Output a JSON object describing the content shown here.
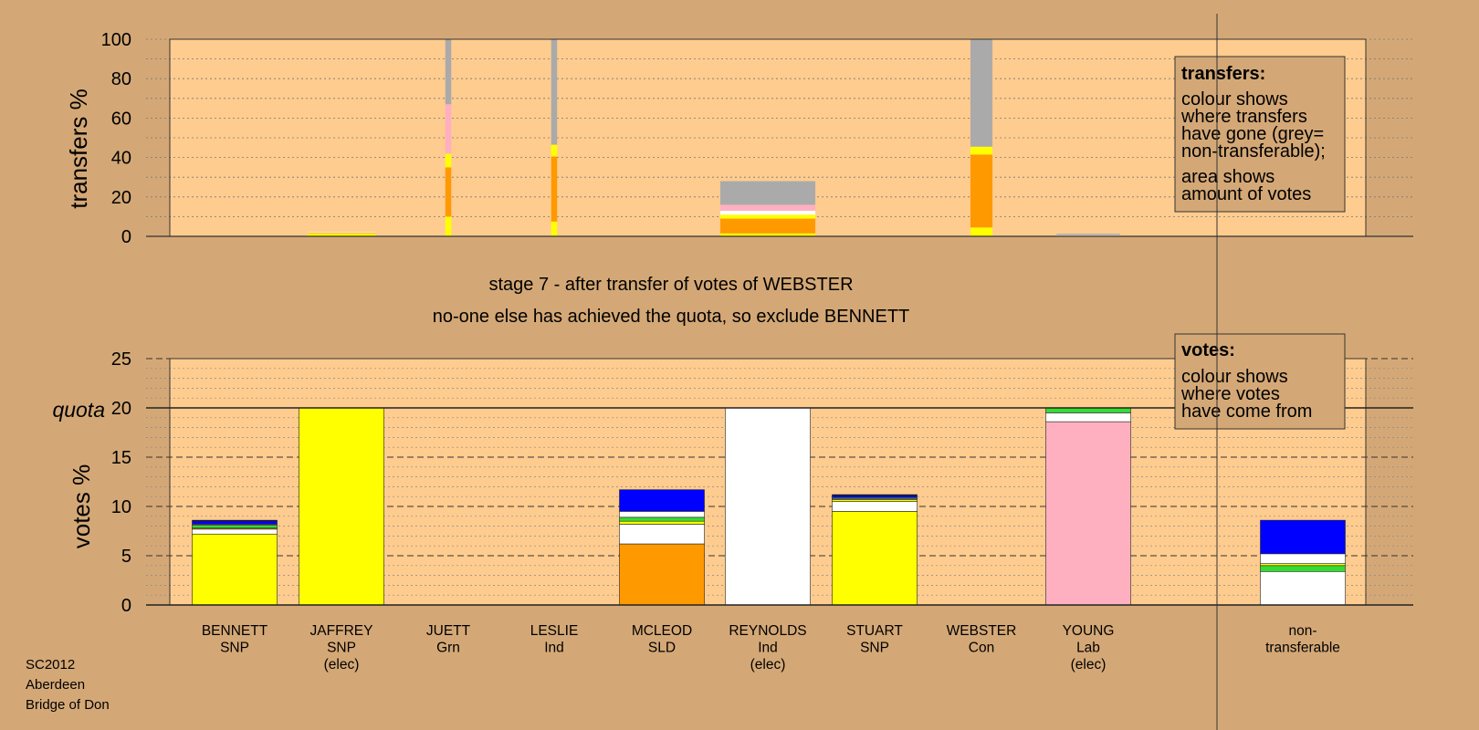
{
  "chart_data": {
    "type": "bar",
    "stage_line1": "stage 7 - after transfer of votes of WEBSTER",
    "stage_line2": "no-one else has achieved the quota, so exclude BENNETT",
    "source": [
      "SC2012",
      "Aberdeen",
      "Bridge of Don"
    ],
    "colors": {
      "SNP": "#ffff00",
      "SLD": "#ff9900",
      "Ind": "#ffffff",
      "Lab": "#ffb0c0",
      "Grn": "#33dd33",
      "Con": "#0000ff",
      "Con_dark": "#000066",
      "nontransferable": "#aaaaaa",
      "panel": "#ffcc8f",
      "background": "#d4a876"
    },
    "candidates": [
      {
        "name": "BENNETT",
        "party": "SNP",
        "note": ""
      },
      {
        "name": "JAFFREY",
        "party": "SNP",
        "note": "(elec)"
      },
      {
        "name": "JUETT",
        "party": "Grn",
        "note": ""
      },
      {
        "name": "LESLIE",
        "party": "Ind",
        "note": ""
      },
      {
        "name": "MCLEOD",
        "party": "SLD",
        "note": ""
      },
      {
        "name": "REYNOLDS",
        "party": "Ind",
        "note": "(elec)"
      },
      {
        "name": "STUART",
        "party": "SNP",
        "note": ""
      },
      {
        "name": "WEBSTER",
        "party": "Con",
        "note": ""
      },
      {
        "name": "YOUNG",
        "party": "Lab",
        "note": "(elec)"
      }
    ],
    "nontransferable_label": [
      "non-",
      "transferable"
    ],
    "transfers": {
      "ylabel": "transfers %",
      "ylim": [
        0,
        100
      ],
      "yticks": [
        0,
        20,
        40,
        60,
        80,
        100
      ],
      "legend_title": "transfers:",
      "legend_lines": [
        [
          "colour shows",
          "where transfers",
          "have gone (grey=",
          "non-transferable);"
        ],
        [
          "area shows",
          "amount of votes"
        ]
      ],
      "columns": [
        {
          "candidate": "JAFFREY",
          "width_fraction": 0.8,
          "segments": [
            {
              "party": "SNP",
              "value": 1.5
            },
            {
              "party": "SLD",
              "value": 0.3
            },
            {
              "party": "Ind",
              "value": 0.3
            }
          ]
        },
        {
          "candidate": "JUETT",
          "width_fraction": 0.07,
          "segments": [
            {
              "party": "SNP",
              "value": 10
            },
            {
              "party": "SLD",
              "value": 25
            },
            {
              "party": "SNP",
              "value": 7
            },
            {
              "party": "Lab",
              "value": 25
            },
            {
              "party": "nontransferable",
              "value": 33
            }
          ]
        },
        {
          "candidate": "LESLIE",
          "width_fraction": 0.07,
          "segments": [
            {
              "party": "SNP",
              "value": 7.5
            },
            {
              "party": "SLD",
              "value": 33
            },
            {
              "party": "SNP",
              "value": 6
            },
            {
              "party": "nontransferable",
              "value": 53.5
            }
          ]
        },
        {
          "candidate": "REYNOLDS",
          "width_fraction": 1.12,
          "segments": [
            {
              "party": "SNP",
              "value": 1.5
            },
            {
              "party": "SLD",
              "value": 7.5
            },
            {
              "party": "SNP",
              "value": 2
            },
            {
              "party": "Ind",
              "value": 2
            },
            {
              "party": "Lab",
              "value": 3
            },
            {
              "party": "nontransferable",
              "value": 12
            }
          ]
        },
        {
          "candidate": "WEBSTER",
          "width_fraction": 0.26,
          "segments": [
            {
              "party": "SNP",
              "value": 4.5
            },
            {
              "party": "SLD",
              "value": 37
            },
            {
              "party": "SNP",
              "value": 4
            },
            {
              "party": "nontransferable",
              "value": 54.5
            }
          ]
        },
        {
          "candidate": "YOUNG",
          "width_fraction": 0.75,
          "segments": [
            {
              "party": "SLD",
              "value": 0.3
            },
            {
              "party": "Ind",
              "value": 0.3
            },
            {
              "party": "nontransferable",
              "value": 0.7
            }
          ]
        }
      ]
    },
    "votes": {
      "ylabel": "votes %",
      "ylim": [
        0,
        25
      ],
      "yticks": [
        0,
        5,
        10,
        15,
        20,
        25
      ],
      "quota": 20,
      "quota_label": "quota",
      "legend_title": "votes:",
      "legend_lines": [
        "colour shows",
        "where votes",
        "have come from"
      ],
      "bars": [
        {
          "candidate": "BENNETT",
          "segments": [
            {
              "party": "SNP",
              "value": 7.2
            },
            {
              "party": "Ind",
              "value": 0.5
            },
            {
              "party": "SLD",
              "value": 0.1
            },
            {
              "party": "Grn",
              "value": 0.3
            },
            {
              "party": "Lab",
              "value": 0.1
            },
            {
              "party": "Con",
              "value": 0.3
            },
            {
              "party": "Con_dark",
              "value": 0.1
            }
          ]
        },
        {
          "candidate": "JAFFREY",
          "segments": [
            {
              "party": "SNP",
              "value": 20
            }
          ]
        },
        {
          "candidate": "JUETT",
          "segments": []
        },
        {
          "candidate": "LESLIE",
          "segments": []
        },
        {
          "candidate": "MCLEOD",
          "segments": [
            {
              "party": "SLD",
              "value": 6.2
            },
            {
              "party": "Ind",
              "value": 2
            },
            {
              "party": "SNP",
              "value": 0.3
            },
            {
              "party": "Grn",
              "value": 0.4
            },
            {
              "party": "Ind",
              "value": 0.6
            },
            {
              "party": "Con",
              "value": 2.2
            }
          ]
        },
        {
          "candidate": "REYNOLDS",
          "segments": [
            {
              "party": "Ind",
              "value": 20
            }
          ]
        },
        {
          "candidate": "STUART",
          "segments": [
            {
              "party": "SNP",
              "value": 9.5
            },
            {
              "party": "Ind",
              "value": 1
            },
            {
              "party": "SNP",
              "value": 0.2
            },
            {
              "party": "Ind",
              "value": 0.1
            },
            {
              "party": "Grn",
              "value": 0.1
            },
            {
              "party": "Con",
              "value": 0.2
            },
            {
              "party": "Con_dark",
              "value": 0.1
            }
          ]
        },
        {
          "candidate": "WEBSTER",
          "segments": []
        },
        {
          "candidate": "YOUNG",
          "segments": [
            {
              "party": "Lab",
              "value": 18.6
            },
            {
              "party": "Ind",
              "value": 0.9
            },
            {
              "party": "Grn",
              "value": 0.5
            }
          ]
        },
        {
          "candidate": "non-transferable",
          "segments": [
            {
              "party": "Ind",
              "value": 3.4
            },
            {
              "party": "Grn",
              "value": 0.6
            },
            {
              "party": "SNP",
              "value": 0.2
            },
            {
              "party": "Ind",
              "value": 1
            },
            {
              "party": "Con",
              "value": 3.4
            }
          ]
        }
      ]
    }
  }
}
